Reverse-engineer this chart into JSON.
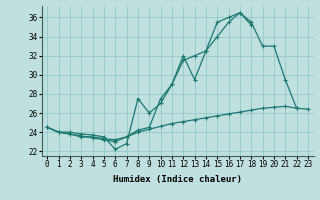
{
  "series": [
    {
      "x": [
        0,
        1,
        2,
        3,
        4,
        5,
        6,
        7,
        8,
        9,
        10,
        11,
        12,
        13,
        14,
        15,
        16,
        17,
        18,
        19,
        20,
        21,
        22,
        23
      ],
      "y": [
        24.5,
        24.0,
        24.0,
        23.8,
        23.7,
        23.5,
        22.2,
        22.8,
        27.5,
        26.0,
        27.0,
        29.0,
        31.5,
        32.0,
        32.5,
        35.5,
        36.0,
        36.5,
        35.2,
        null,
        null,
        null,
        null,
        null
      ]
    },
    {
      "x": [
        0,
        1,
        2,
        3,
        4,
        5,
        6,
        7,
        8,
        9,
        10,
        11,
        12,
        13,
        14,
        15,
        16,
        17,
        18,
        19,
        20,
        21,
        22,
        23
      ],
      "y": [
        24.5,
        24.0,
        23.8,
        23.5,
        23.5,
        23.3,
        23.2,
        23.5,
        24.2,
        24.5,
        27.5,
        29.0,
        32.0,
        29.5,
        32.5,
        34.0,
        35.5,
        36.5,
        35.5,
        33.0,
        33.0,
        29.5,
        26.5,
        null
      ]
    },
    {
      "x": [
        0,
        1,
        2,
        3,
        4,
        5,
        6,
        7,
        8,
        9,
        10,
        11,
        12,
        13,
        14,
        15,
        16,
        17,
        18,
        19,
        20,
        21,
        22,
        23
      ],
      "y": [
        24.5,
        24.0,
        23.8,
        23.6,
        23.4,
        23.2,
        23.0,
        23.5,
        24.0,
        24.3,
        24.6,
        24.9,
        25.1,
        25.3,
        25.5,
        25.7,
        25.9,
        26.1,
        26.3,
        26.5,
        26.6,
        26.7,
        26.5,
        26.4
      ]
    }
  ],
  "line_color": "#1a7a6e",
  "bg_color": "#c0e0e0",
  "grid_color": "#96c8c8",
  "xlabel": "Humidex (Indice chaleur)",
  "ylim": [
    21.5,
    37.2
  ],
  "xlim": [
    -0.5,
    23.5
  ],
  "yticks": [
    22,
    24,
    26,
    28,
    30,
    32,
    34,
    36
  ],
  "xticks": [
    0,
    1,
    2,
    3,
    4,
    5,
    6,
    7,
    8,
    9,
    10,
    11,
    12,
    13,
    14,
    15,
    16,
    17,
    18,
    19,
    20,
    21,
    22,
    23
  ],
  "label_fontsize": 6.5,
  "tick_fontsize": 5.5
}
